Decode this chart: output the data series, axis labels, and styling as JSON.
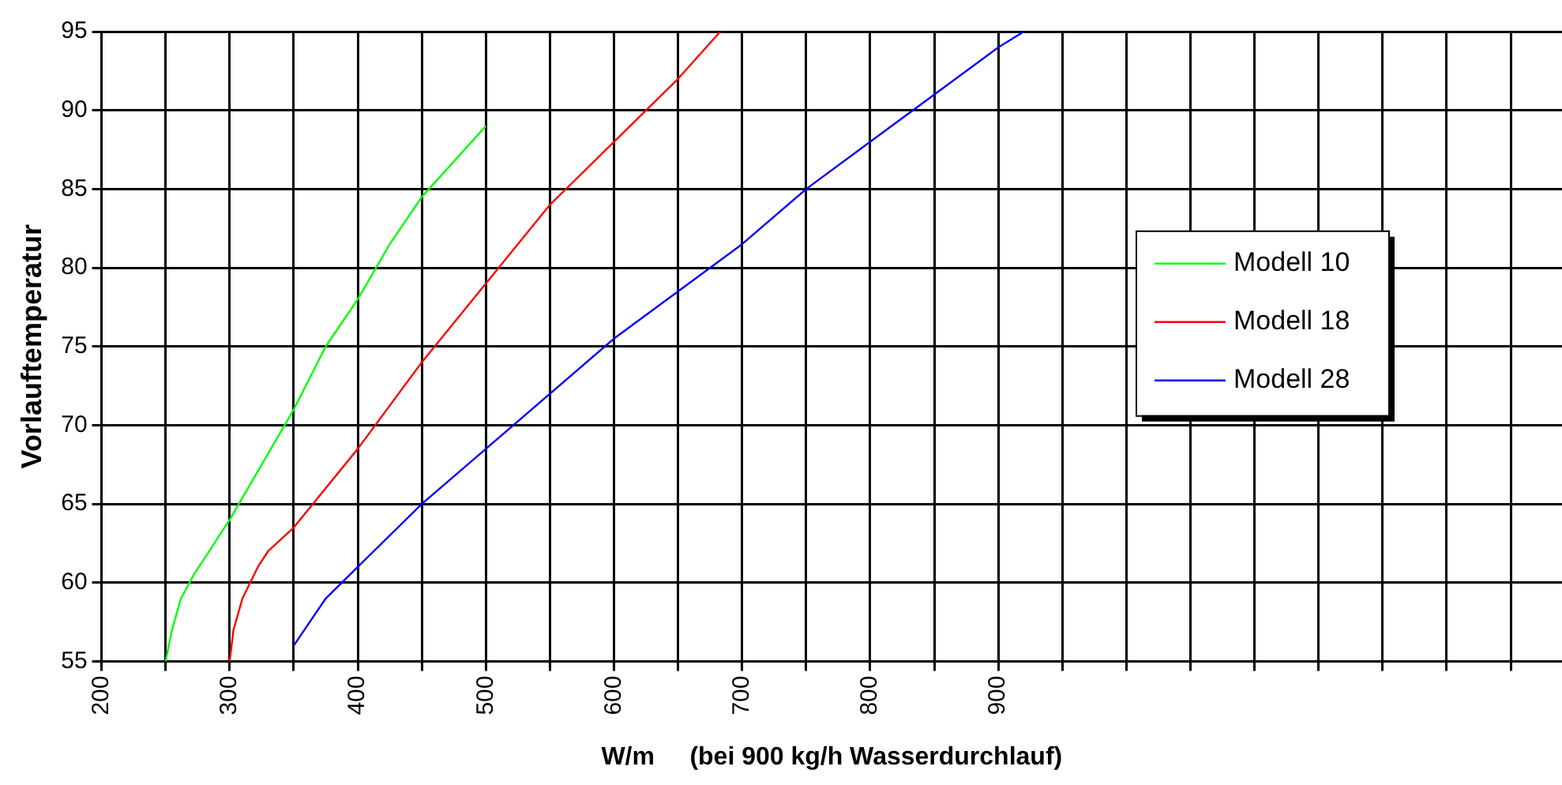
{
  "chart_data": {
    "type": "line",
    "xlabel": "W/m     (bei 900 kg/h Wasserdurchlauf)",
    "ylabel": "Vorlauftemperatur",
    "xlim": [
      200,
      1340
    ],
    "ylim": [
      55,
      95
    ],
    "xticks": [
      200,
      {
        "value": 250,
        "label": null
      },
      300,
      {
        "value": 350,
        "label": null
      },
      400,
      {
        "value": 450,
        "label": null
      },
      500,
      {
        "value": 550,
        "label": null
      },
      600,
      {
        "value": 650,
        "label": null
      },
      700,
      {
        "value": 750,
        "label": null
      },
      800,
      {
        "value": 850,
        "label": null
      },
      900,
      {
        "value": 950,
        "label": null
      },
      {
        "value": 1000,
        "label": null
      },
      {
        "value": 1050,
        "label": null
      },
      {
        "value": 1100,
        "label": null
      },
      {
        "value": 1150,
        "label": null
      },
      {
        "value": 1200,
        "label": null
      },
      {
        "value": 1250,
        "label": null
      },
      {
        "value": 1300,
        "label": null
      }
    ],
    "yticks": [
      55,
      60,
      65,
      70,
      75,
      80,
      85,
      90,
      95
    ],
    "grid": true,
    "legend": "right",
    "marker": "none",
    "line_style": "solid",
    "series": [
      {
        "name": "Modell 10",
        "color": "#00ff00",
        "x": [
          250,
          255,
          262,
          272,
          300,
          350,
          375,
          400,
          425,
          450,
          500
        ],
        "values": [
          55,
          57,
          59,
          60.5,
          64,
          71,
          75,
          78,
          81.5,
          84.5,
          89
        ]
      },
      {
        "name": "Modell 18",
        "color": "#ff0000",
        "x": [
          300,
          303,
          310,
          322,
          330,
          350,
          400,
          450,
          500,
          550,
          600,
          650,
          683
        ],
        "values": [
          55,
          57,
          59,
          61,
          62,
          63.5,
          68.5,
          74,
          79,
          84,
          88,
          92,
          95
        ]
      },
      {
        "name": "Modell 28",
        "color": "#0000ff",
        "x": [
          350,
          375,
          400,
          450,
          500,
          600,
          700,
          750,
          800,
          850,
          900,
          920
        ],
        "values": [
          56,
          59,
          61,
          65,
          68.5,
          75.5,
          81.5,
          85,
          88,
          91,
          94,
          95
        ]
      }
    ]
  }
}
